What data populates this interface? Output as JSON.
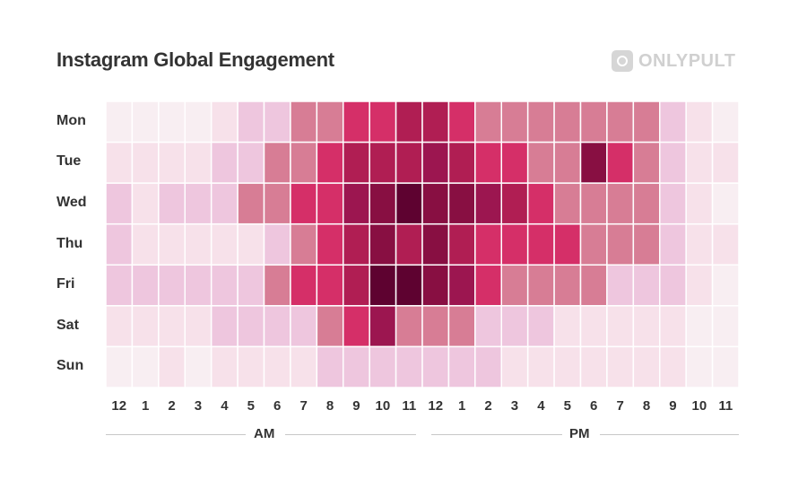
{
  "title": "Instagram Global Engagement",
  "logo_text": "ONLYPULT",
  "chart_data": {
    "type": "heatmap",
    "title": "Instagram Global Engagement",
    "rows": [
      "Mon",
      "Tue",
      "Wed",
      "Thu",
      "Fri",
      "Sat",
      "Sun"
    ],
    "columns": [
      "12",
      "1",
      "2",
      "3",
      "4",
      "5",
      "6",
      "7",
      "8",
      "9",
      "10",
      "11",
      "12",
      "1",
      "2",
      "3",
      "4",
      "5",
      "6",
      "7",
      "8",
      "9",
      "10",
      "11"
    ],
    "period_labels": [
      "AM",
      "PM"
    ],
    "value_scale": "relative engagement level 0 (low) to 8 (high)",
    "values": [
      [
        0,
        0,
        0,
        0,
        1,
        2,
        2,
        3,
        3,
        4,
        4,
        5,
        5,
        4,
        3,
        3,
        3,
        3,
        3,
        3,
        3,
        2,
        1,
        0
      ],
      [
        1,
        1,
        1,
        1,
        2,
        2,
        3,
        3,
        4,
        5,
        5,
        5,
        6,
        5,
        4,
        4,
        3,
        3,
        7,
        4,
        3,
        2,
        1,
        1
      ],
      [
        2,
        1,
        2,
        2,
        2,
        3,
        3,
        4,
        4,
        6,
        7,
        8,
        7,
        7,
        6,
        5,
        4,
        3,
        3,
        3,
        3,
        2,
        1,
        0
      ],
      [
        2,
        1,
        1,
        1,
        1,
        1,
        2,
        3,
        4,
        5,
        7,
        5,
        7,
        5,
        4,
        4,
        4,
        4,
        3,
        3,
        3,
        2,
        1,
        1
      ],
      [
        2,
        2,
        2,
        2,
        2,
        2,
        3,
        4,
        4,
        5,
        8,
        8,
        7,
        6,
        4,
        3,
        3,
        3,
        3,
        2,
        2,
        2,
        1,
        0
      ],
      [
        1,
        1,
        1,
        1,
        2,
        2,
        2,
        2,
        3,
        4,
        6,
        3,
        3,
        3,
        2,
        2,
        2,
        1,
        1,
        1,
        1,
        1,
        0,
        0
      ],
      [
        0,
        0,
        1,
        0,
        1,
        1,
        1,
        1,
        2,
        2,
        2,
        2,
        2,
        2,
        2,
        1,
        1,
        1,
        1,
        1,
        1,
        1,
        0,
        0
      ]
    ],
    "color_scale": [
      "#f8eef2",
      "#f7e1ea",
      "#eec6de",
      "#d77d95",
      "#d52f68",
      "#b01e53",
      "#9c1650",
      "#880f42",
      "#5e0230"
    ]
  }
}
